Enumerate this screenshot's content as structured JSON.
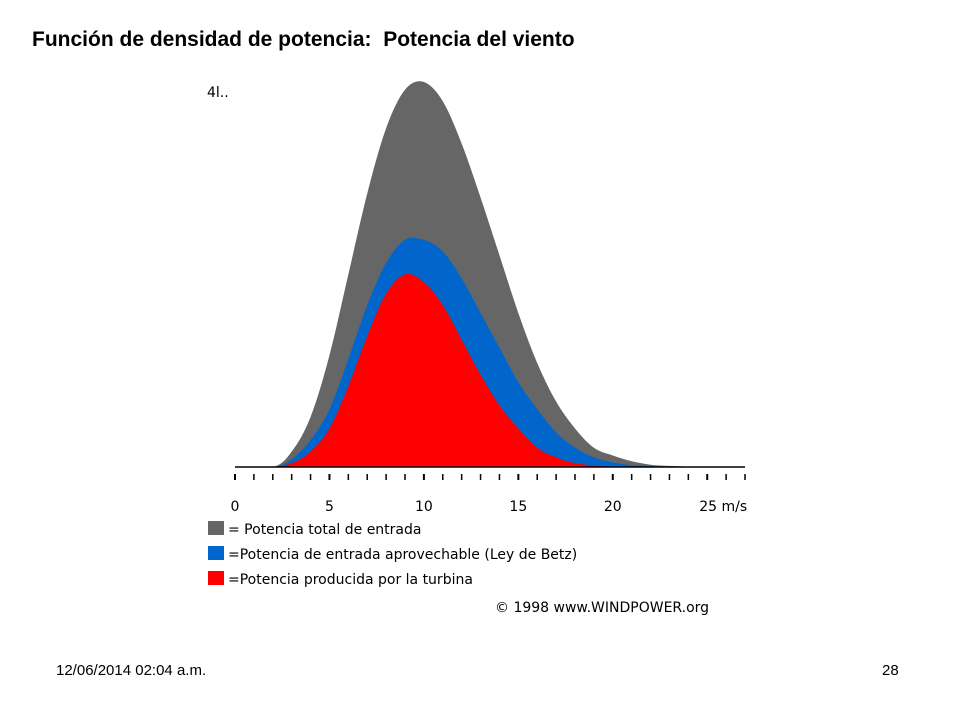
{
  "slide": {
    "title": "Función de densidad de potencia:  Potencia del viento",
    "footer_date": "12/06/2014 02:04 a.m.",
    "page_number": "28"
  },
  "chart_data": {
    "type": "area",
    "title": "",
    "xlabel": "m/s",
    "ylabel": "",
    "y_top_label": "4l..",
    "xlim": [
      0,
      27
    ],
    "ylim": [
      0,
      1.0
    ],
    "x_ticks": [
      0,
      5,
      10,
      15,
      20,
      25
    ],
    "x_tick_labels": [
      "0",
      "5",
      "10",
      "15",
      "20",
      "25 m/s"
    ],
    "legend_position": "below-left",
    "credit": "© 1998 www.WINDPOWER.org",
    "series": [
      {
        "name": "= Potencia total de entrada",
        "color": "#666666",
        "x": [
          0,
          2,
          3,
          4,
          5,
          6,
          7,
          8,
          9,
          10,
          11,
          12,
          13,
          14,
          15,
          16,
          17,
          18,
          19,
          20,
          21,
          22,
          23,
          24,
          25,
          26,
          27
        ],
        "values": [
          0.0,
          0.0,
          0.04,
          0.13,
          0.29,
          0.5,
          0.71,
          0.88,
          0.98,
          1.0,
          0.95,
          0.84,
          0.7,
          0.55,
          0.4,
          0.27,
          0.17,
          0.1,
          0.05,
          0.03,
          0.015,
          0.006,
          0.003,
          0.001,
          0.0,
          0.0,
          0.0
        ]
      },
      {
        "name": "=Potencia de entrada aprovechable (Ley de Betz)",
        "color": "#0066cc",
        "x": [
          0,
          2,
          3,
          4,
          5,
          6,
          7,
          8,
          9,
          10,
          11,
          12,
          13,
          14,
          15,
          16,
          17,
          18,
          19,
          20,
          21,
          22,
          23,
          24,
          25,
          26,
          27
        ],
        "values": [
          0.0,
          0.0,
          0.02,
          0.07,
          0.15,
          0.28,
          0.42,
          0.53,
          0.59,
          0.59,
          0.56,
          0.49,
          0.4,
          0.31,
          0.22,
          0.15,
          0.09,
          0.05,
          0.025,
          0.012,
          0.005,
          0.002,
          0.0,
          0.0,
          0.0,
          0.0,
          0.0
        ]
      },
      {
        "name": "=Potencia producida por la turbina",
        "color": "#ff0000",
        "x": [
          0,
          2,
          3,
          4,
          5,
          6,
          7,
          8,
          9,
          10,
          11,
          12,
          13,
          14,
          15,
          16,
          17,
          18,
          19,
          20,
          21,
          22,
          23,
          24,
          25,
          26,
          27
        ],
        "values": [
          0.0,
          0.0,
          0.01,
          0.04,
          0.1,
          0.21,
          0.34,
          0.45,
          0.5,
          0.48,
          0.42,
          0.33,
          0.24,
          0.16,
          0.1,
          0.05,
          0.025,
          0.01,
          0.004,
          0.0,
          0.0,
          0.0,
          0.0,
          0.0,
          0.0,
          0.0,
          0.0
        ]
      }
    ]
  }
}
